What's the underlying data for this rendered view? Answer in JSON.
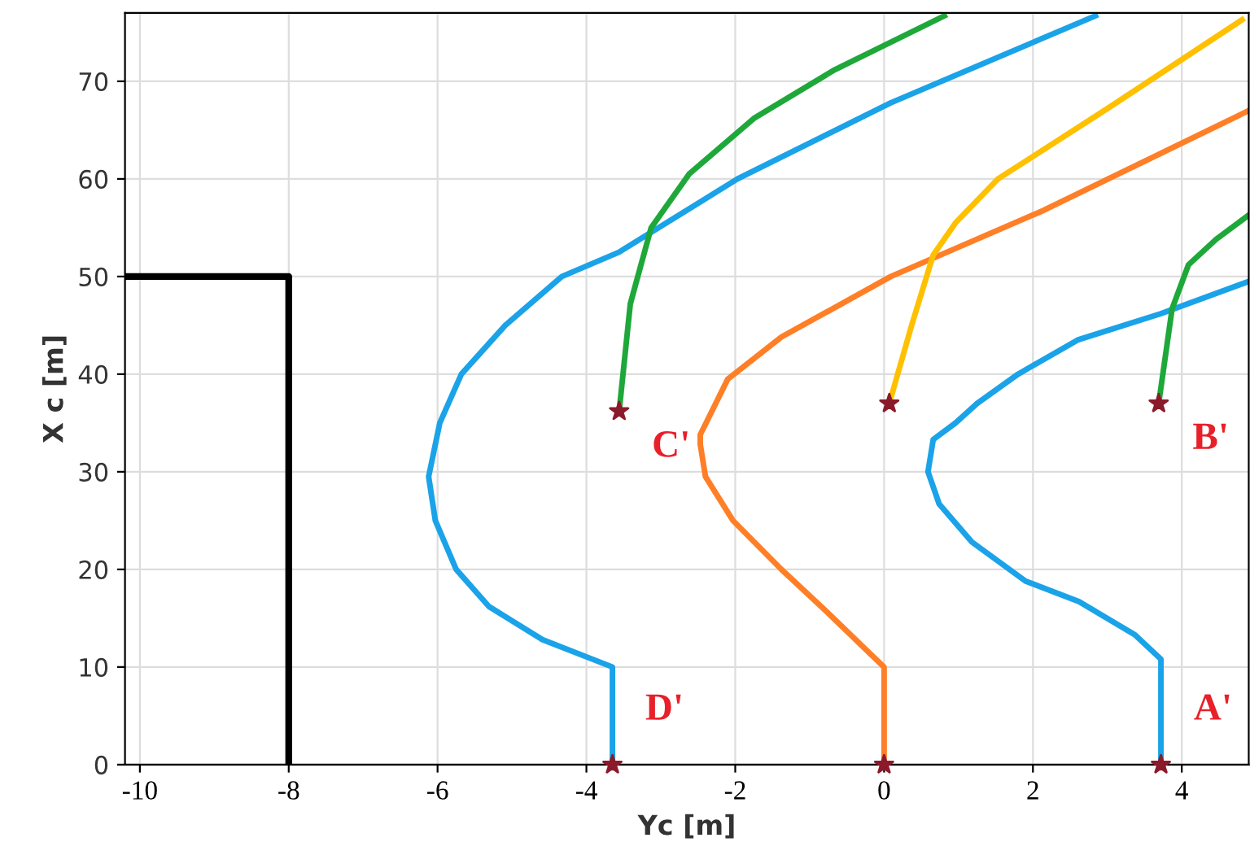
{
  "chart_data": {
    "type": "line",
    "xlabel": "Yc [m]",
    "ylabel": "X c [m]",
    "xlim": [
      -10.2,
      4.9
    ],
    "ylim": [
      0,
      77
    ],
    "xticks": [
      -10,
      -8,
      -6,
      -4,
      -2,
      0,
      2,
      4
    ],
    "yticks": [
      0,
      10,
      20,
      30,
      40,
      50,
      60,
      70
    ],
    "grid": true,
    "legend": false,
    "series": [
      {
        "color": "#000000",
        "x": [
          -10.2,
          -8,
          -8
        ],
        "values": [
          50,
          50,
          0
        ]
      },
      {
        "color": "#1aa3e8",
        "x": [
          -3.65,
          -3.65,
          -4.59,
          -5.31,
          -5.75,
          -6.03,
          -6.12,
          -5.97,
          -5.68,
          -5.09,
          -4.33,
          -3.56,
          -1.97,
          0.09,
          2.84
        ],
        "values": [
          0,
          10,
          12.8,
          16.2,
          20,
          25,
          29.5,
          35,
          40,
          45,
          50,
          52.5,
          60,
          67.8,
          76.7
        ]
      },
      {
        "color": "#1aa3e8",
        "x": [
          3.72,
          3.72,
          3.37,
          2.62,
          1.9,
          1.18,
          0.74,
          0.59,
          0.66,
          0.96,
          1.25,
          1.8,
          2.6,
          3.72,
          4.9
        ],
        "values": [
          0,
          10.8,
          13.3,
          16.7,
          18.8,
          22.8,
          26.7,
          30,
          33.3,
          35,
          37,
          40,
          43.5,
          46.2,
          49.5
        ]
      },
      {
        "color": "#ff7f27",
        "x": [
          0,
          0,
          -0.79,
          -1.38,
          -2.03,
          -2.4,
          -2.47,
          -2.47,
          -2.1,
          -1.38,
          0.09,
          2.12,
          4.9
        ],
        "values": [
          0,
          10,
          15.8,
          20,
          25,
          29.5,
          32.8,
          33.8,
          39.5,
          43.8,
          50,
          56.7,
          67
        ]
      },
      {
        "color": "#ffc000",
        "x": [
          0.07,
          0.37,
          0.66,
          0.96,
          1.53,
          3.0,
          4.81
        ],
        "values": [
          37,
          45,
          52.2,
          55.5,
          60,
          67.2,
          76.3
        ]
      },
      {
        "color": "#1fa83a",
        "x": [
          -3.56,
          -3.41,
          -3.13,
          -2.62,
          -1.75,
          -0.66,
          0.81
        ],
        "values": [
          36.2,
          47.2,
          55,
          60.5,
          66.2,
          71.2,
          76.7
        ]
      },
      {
        "color": "#1fa83a",
        "x": [
          3.69,
          3.87,
          4.09,
          4.46,
          4.9
        ],
        "values": [
          37,
          46.7,
          51.2,
          53.8,
          56.3
        ]
      },
      {
        "type": "scatter",
        "color": "#8b1a2a",
        "marker": "star",
        "x": [
          3.72,
          3.69,
          -3.56,
          -3.65,
          0,
          0.07
        ],
        "values": [
          0,
          37,
          36.2,
          0,
          0,
          37
        ]
      }
    ],
    "annotations": [
      "A'",
      "B'",
      "C'",
      "D'"
    ]
  }
}
